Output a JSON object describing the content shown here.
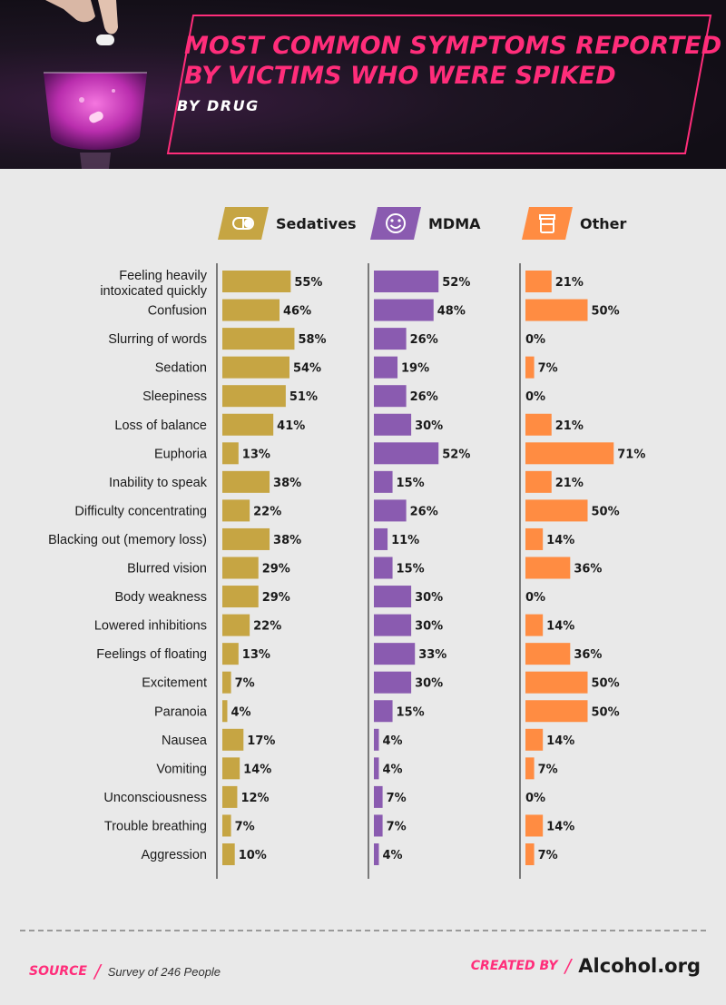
{
  "header": {
    "title_line1": "MOST COMMON SYMPTOMS REPORTED",
    "title_line2": "BY VICTIMS WHO WERE SPIKED",
    "subtitle": "BY DRUG"
  },
  "legend": {
    "sedatives": {
      "label": "Sedatives",
      "icon": "pill-icon",
      "color": "#c6a543"
    },
    "mdma": {
      "label": "MDMA",
      "icon": "smiley-icon",
      "color": "#8a5bb0"
    },
    "other": {
      "label": "Other",
      "icon": "pill-bottle-icon",
      "color": "#ff8c42"
    }
  },
  "chart_data": {
    "type": "bar",
    "categories": [
      "Feeling heavily intoxicated quickly",
      "Confusion",
      "Slurring of words",
      "Sedation",
      "Sleepiness",
      "Loss of balance",
      "Euphoria",
      "Inability to speak",
      "Difficulty concentrating",
      "Blacking out (memory loss)",
      "Blurred vision",
      "Body weakness",
      "Lowered inhibitions",
      "Feelings of floating",
      "Excitement",
      "Paranoia",
      "Nausea",
      "Vomiting",
      "Unconsciousness",
      "Trouble breathing",
      "Aggression"
    ],
    "series": [
      {
        "name": "Sedatives",
        "color": "#c6a543",
        "values": [
          55,
          46,
          58,
          54,
          51,
          41,
          13,
          38,
          22,
          38,
          29,
          29,
          22,
          13,
          7,
          4,
          17,
          14,
          12,
          7,
          10
        ]
      },
      {
        "name": "MDMA",
        "color": "#8a5bb0",
        "values": [
          52,
          48,
          26,
          19,
          26,
          30,
          52,
          15,
          26,
          11,
          15,
          30,
          30,
          33,
          30,
          15,
          4,
          4,
          7,
          7,
          4
        ]
      },
      {
        "name": "Other",
        "color": "#ff8c42",
        "values": [
          21,
          50,
          0,
          7,
          0,
          21,
          71,
          21,
          50,
          14,
          36,
          0,
          14,
          36,
          50,
          50,
          14,
          7,
          0,
          14,
          7
        ]
      }
    ],
    "value_suffix": "%",
    "ylim": [
      0,
      100
    ]
  },
  "footer": {
    "source_label": "SOURCE",
    "source_text": "Survey of 246 People",
    "created_label": "CREATED BY",
    "brand": "Alcohol.org"
  }
}
